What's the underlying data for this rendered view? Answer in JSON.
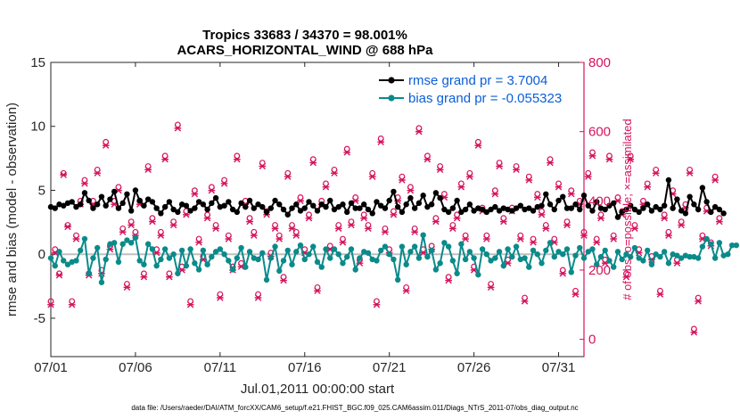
{
  "chart_data": {
    "type": "line",
    "title_line1": "Tropics 33683 / 34370 = 98.001%",
    "title_line2": "ACARS_HORIZONTAL_WIND @ 688 hPa",
    "xlabel": "Jul.01,2011 00:00:00 start",
    "ylabel_left": "rmse and bias (model - observation)",
    "ylabel_right": "# of obs: o=possible; ×=assimilated",
    "xlim": [
      0,
      31.5
    ],
    "ylim_left": [
      -8,
      15
    ],
    "ylim_right": [
      -50,
      800
    ],
    "x_ticks": [
      {
        "x": 0,
        "label": "07/01"
      },
      {
        "x": 5,
        "label": "07/06"
      },
      {
        "x": 10,
        "label": "07/11"
      },
      {
        "x": 15,
        "label": "07/16"
      },
      {
        "x": 20,
        "label": "07/21"
      },
      {
        "x": 25,
        "label": "07/26"
      },
      {
        "x": 30,
        "label": "07/31"
      }
    ],
    "y_ticks_left": [
      "-5",
      "0",
      "5",
      "10",
      "15"
    ],
    "y_ticks_right": [
      "0",
      "200",
      "400",
      "600",
      "800"
    ],
    "zero_line": 0,
    "legend": [
      {
        "name": "rmse grand pr = 3.7004",
        "color": "#000000"
      },
      {
        "name": "bias grand pr = -0.055323",
        "color": "#0b8a8a"
      }
    ],
    "colors": {
      "rmse": "#000000",
      "bias": "#0b8a8a",
      "obs": "#d6135c",
      "zero": "#bfbfbf"
    },
    "dt_days": 0.25,
    "rmse": [
      3.7,
      3.6,
      3.9,
      3.8,
      4.0,
      4.1,
      3.7,
      3.9,
      4.8,
      4.2,
      3.6,
      3.9,
      4.5,
      3.8,
      4.3,
      4.9,
      3.6,
      4.0,
      4.7,
      3.4,
      5.0,
      4.2,
      3.8,
      4.3,
      4.1,
      3.6,
      3.2,
      3.7,
      4.1,
      3.5,
      3.3,
      3.9,
      3.8,
      3.4,
      3.6,
      4.1,
      3.9,
      3.5,
      4.0,
      4.4,
      3.7,
      3.8,
      4.1,
      3.5,
      3.3,
      4.0,
      3.7,
      4.2,
      3.6,
      3.9,
      3.7,
      3.3,
      3.6,
      4.2,
      3.9,
      3.5,
      3.1,
      3.6,
      3.9,
      3.4,
      3.6,
      4.1,
      3.8,
      3.4,
      3.9,
      3.7,
      4.2,
      3.5,
      3.7,
      3.9,
      3.3,
      4.0,
      3.6,
      3.6,
      3.9,
      3.5,
      3.2,
      4.1,
      3.8,
      3.6,
      4.2,
      4.9,
      3.7,
      3.3,
      3.9,
      4.4,
      3.6,
      4.0,
      4.6,
      3.7,
      3.9,
      4.8,
      4.4,
      3.5,
      3.3,
      3.6,
      4.2,
      3.3,
      3.5,
      3.9,
      3.4,
      3.6,
      3.5,
      3.3,
      3.5,
      3.7,
      3.4,
      3.6,
      3.5,
      3.4,
      3.6,
      3.8,
      3.5,
      3.6,
      3.4,
      3.7,
      3.8,
      4.7,
      3.9,
      3.5,
      4.2,
      4.5,
      3.6,
      3.6,
      3.9,
      3.5,
      4.6,
      3.8,
      3.4,
      4.1,
      3.6,
      3.5,
      3.8,
      4.0,
      2.9,
      3.3,
      3.5,
      3.8,
      3.5,
      3.3,
      3.6,
      3.9,
      3.4,
      3.7,
      3.5,
      3.8,
      5.8,
      3.6,
      4.3,
      3.4,
      3.2,
      4.5,
      3.9,
      3.5,
      5.2,
      4.1,
      3.3,
      3.7,
      3.5,
      3.2
    ],
    "bias": [
      -0.3,
      -0.9,
      0.2,
      -0.5,
      -0.8,
      -0.6,
      -0.5,
      0.3,
      1.2,
      -1.5,
      -0.3,
      0.5,
      -2.2,
      -0.4,
      0.8,
      0.9,
      -0.6,
      0.8,
      1.1,
      0.9,
      1.3,
      -0.5,
      -0.8,
      0.8,
      0.4,
      -0.9,
      -0.4,
      0.4,
      -0.3,
      0.0,
      -1.5,
      0.3,
      -0.9,
      0.4,
      -0.7,
      -1.2,
      0.3,
      -0.8,
      -0.2,
      0.2,
      0.4,
      0.0,
      -0.5,
      -1.2,
      -0.3,
      0.5,
      -1.0,
      0.2,
      -0.3,
      -0.4,
      0.1,
      -2.0,
      -0.3,
      0.6,
      -1.3,
      -0.5,
      0.3,
      -0.8,
      0.2,
      0.7,
      -0.4,
      0.0,
      0.6,
      -0.6,
      -1.0,
      0.4,
      -0.3,
      0.4,
      0.0,
      -0.7,
      -0.2,
      0.4,
      -1.2,
      -0.3,
      0.2,
      0.1,
      -0.4,
      -0.5,
      0.3,
      0.6,
      0.0,
      -0.4,
      -2.0,
      0.6,
      -0.8,
      0.2,
      0.6,
      -0.3,
      1.5,
      -0.2,
      0.3,
      -1.2,
      -0.7,
      0.9,
      0.6,
      -0.5,
      -1.5,
      0.8,
      -0.4,
      0.2,
      -0.3,
      -1.6,
      0.4,
      0.0,
      -0.5,
      -0.3,
      0.2,
      -0.9,
      0.4,
      -0.2,
      0.6,
      -0.4,
      -0.3,
      -1.0,
      0.3,
      0.0,
      -0.7,
      0.3,
      0.9,
      -0.2,
      0.2,
      0.0,
      0.4,
      -1.4,
      -0.1,
      0.5,
      -0.3,
      0.2,
      0.4,
      -0.8,
      -0.2,
      0.3,
      -0.5,
      -1.0,
      0.2,
      -0.4,
      0.0,
      -0.2,
      0.5,
      -0.3,
      -0.5,
      0.3,
      -0.8,
      0.0,
      -0.2,
      0.2,
      -0.7,
      0.0,
      -0.1,
      -0.3,
      -0.1,
      -0.2,
      -0.2,
      -0.3,
      0.6,
      1.2,
      0.8,
      -0.3,
      0.9,
      -0.1,
      0.0,
      0.7,
      0.7
    ],
    "obs_possible": [
      110,
      260,
      190,
      480,
      330,
      110,
      300,
      400,
      460,
      190,
      400,
      490,
      200,
      570,
      270,
      400,
      440,
      320,
      160,
      340,
      310,
      400,
      190,
      500,
      350,
      260,
      310,
      530,
      190,
      340,
      620,
      210,
      370,
      110,
      430,
      290,
      240,
      360,
      440,
      330,
      130,
      460,
      300,
      210,
      530,
      220,
      400,
      350,
      310,
      130,
      510,
      370,
      250,
      330,
      300,
      180,
      480,
      330,
      310,
      410,
      260,
      360,
      520,
      150,
      400,
      450,
      270,
      490,
      330,
      290,
      550,
      340,
      410,
      230,
      360,
      330,
      480,
      110,
      580,
      320,
      260,
      370,
      410,
      470,
      150,
      440,
      320,
      610,
      260,
      530,
      270,
      350,
      500,
      420,
      180,
      330,
      360,
      450,
      300,
      480,
      210,
      570,
      380,
      300,
      160,
      430,
      510,
      350,
      230,
      380,
      500,
      300,
      120,
      470,
      290,
      420,
      370,
      330,
      520,
      290,
      450,
      200,
      340,
      430,
      140,
      400,
      310,
      480,
      540,
      290,
      360,
      230,
      530,
      300,
      410,
      370,
      190,
      530,
      330,
      260,
      400,
      450,
      240,
      490,
      140,
      360,
      310,
      430,
      230,
      340,
      390,
      490,
      30,
      120,
      300,
      380,
      280,
      470,
      350
    ],
    "obs_assimilated": [
      100,
      250,
      185,
      475,
      325,
      100,
      290,
      390,
      450,
      185,
      390,
      480,
      190,
      560,
      260,
      390,
      430,
      310,
      150,
      330,
      300,
      390,
      180,
      490,
      340,
      250,
      300,
      520,
      180,
      330,
      610,
      200,
      360,
      100,
      420,
      280,
      230,
      350,
      430,
      320,
      120,
      450,
      290,
      200,
      520,
      210,
      390,
      340,
      300,
      120,
      500,
      360,
      240,
      320,
      290,
      170,
      470,
      320,
      300,
      400,
      250,
      350,
      510,
      140,
      390,
      440,
      260,
      480,
      320,
      280,
      540,
      330,
      400,
      220,
      350,
      320,
      470,
      100,
      570,
      310,
      250,
      360,
      400,
      460,
      140,
      430,
      310,
      600,
      250,
      520,
      260,
      340,
      490,
      410,
      170,
      320,
      350,
      440,
      290,
      470,
      200,
      560,
      370,
      290,
      150,
      420,
      500,
      340,
      220,
      370,
      490,
      290,
      110,
      460,
      280,
      410,
      360,
      320,
      510,
      280,
      440,
      190,
      330,
      420,
      130,
      390,
      300,
      470,
      530,
      280,
      350,
      220,
      520,
      290,
      400,
      360,
      180,
      520,
      320,
      250,
      390,
      440,
      230,
      480,
      130,
      350,
      300,
      420,
      220,
      330,
      380,
      480,
      20,
      110,
      290,
      370,
      270,
      460,
      340
    ]
  },
  "footer": "data file: /Users/raeder/DAI/ATM_forcXX/CAM6_setup/f.e21.FHIST_BGC.f09_025.CAM6assim.011/Diags_NTrS_2011-07/obs_diag_output.nc"
}
